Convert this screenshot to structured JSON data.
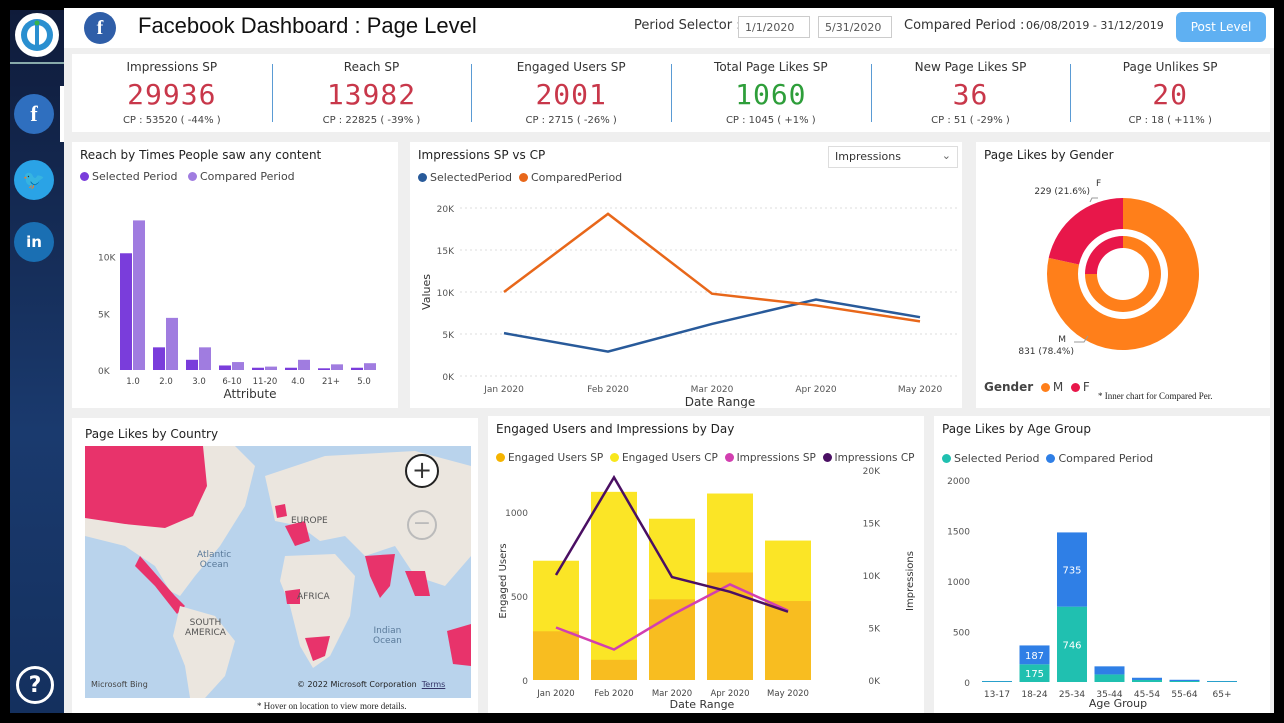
{
  "header": {
    "title": "Facebook Dashboard : Page Level",
    "period_selector_label": "Period Selector :",
    "start_date": "1/1/2020",
    "end_date": "5/31/2020",
    "compared_label": "Compared Period :",
    "compared_range": "06/08/2019 - 31/12/2019",
    "post_level_button": "Post Level"
  },
  "kpis": [
    {
      "label": "Impressions SP",
      "value": "29936",
      "cp": "CP : 53520 ( -44% )",
      "color": "#c8374a"
    },
    {
      "label": "Reach SP",
      "value": "13982",
      "cp": "CP : 22825 ( -39% )",
      "color": "#c8374a"
    },
    {
      "label": "Engaged Users SP",
      "value": "2001",
      "cp": "CP : 2715 ( -26% )",
      "color": "#c8374a"
    },
    {
      "label": "Total Page Likes SP",
      "value": "1060",
      "cp": "CP : 1045 ( +1% )",
      "color": "#2e9e3a"
    },
    {
      "label": "New Page Likes SP",
      "value": "36",
      "cp": "CP : 51 ( -29% )",
      "color": "#c8374a"
    },
    {
      "label": "Page Unlikes SP",
      "value": "20",
      "cp": "CP : 18 ( +11% )",
      "color": "#c8374a"
    }
  ],
  "reach_chart": {
    "title": "Reach by Times People saw any content",
    "legend": [
      "Selected Period",
      "Compared Period"
    ]
  },
  "impressions_chart": {
    "title": "Impressions SP vs CP",
    "dropdown": "Impressions",
    "legend": [
      "SelectedPeriod",
      "ComparedPeriod"
    ]
  },
  "gender_chart": {
    "title": "Page Likes by Gender",
    "legend_title": "Gender",
    "legend": [
      "M",
      "F"
    ],
    "note": "* Inner chart for Compared Per.",
    "label_f": "F",
    "label_m": "M",
    "label_f_val": "229 (21.6%)",
    "label_m_val": "831 (78.4%)"
  },
  "map": {
    "title": "Page Likes by Country",
    "labels": {
      "europe": "EUROPE",
      "atlantic": "Atlantic\nOcean",
      "africa": "AFRICA",
      "south_america": "SOUTH\nAMERICA",
      "indian": "Indian\nOcean"
    },
    "bing": "Microsoft Bing",
    "copyright": "© 2022 Microsoft Corporation",
    "terms": "Terms",
    "note": "* Hover on location to view more details."
  },
  "engaged_chart": {
    "title": "Engaged Users and Impressions by Day",
    "legend": [
      "Engaged Users SP",
      "Engaged Users CP",
      "Impressions SP",
      "Impressions CP"
    ]
  },
  "age_chart": {
    "title": "Page Likes by Age Group",
    "legend": [
      "Selected Period",
      "Compared Period"
    ]
  },
  "chart_data": [
    {
      "type": "bar",
      "title": "Reach by Times People saw any content",
      "categories": [
        "1.0",
        "2.0",
        "3.0",
        "6-10",
        "11-20",
        "4.0",
        "21+",
        "5.0"
      ],
      "series": [
        {
          "name": "Selected Period",
          "values": [
            10300,
            2000,
            900,
            400,
            200,
            200,
            150,
            200
          ]
        },
        {
          "name": "Compared Period",
          "values": [
            13200,
            4600,
            2000,
            700,
            300,
            900,
            500,
            600
          ]
        }
      ],
      "xlabel": "Attribute",
      "ylabel": "",
      "ylim": [
        0,
        15000
      ],
      "yticks": [
        "0K",
        "5K",
        "10K"
      ]
    },
    {
      "type": "line",
      "title": "Impressions SP vs CP",
      "categories": [
        "Jan 2020",
        "Feb 2020",
        "Mar 2020",
        "Apr 2020",
        "May 2020"
      ],
      "series": [
        {
          "name": "SelectedPeriod",
          "values": [
            5100,
            2900,
            6200,
            9100,
            7000
          ]
        },
        {
          "name": "ComparedPeriod",
          "values": [
            10000,
            19300,
            9800,
            8400,
            6500
          ]
        }
      ],
      "xlabel": "Date Range",
      "ylabel": "Values",
      "ylim": [
        0,
        20000
      ],
      "yticks": [
        "0K",
        "5K",
        "10K",
        "15K",
        "20K"
      ]
    },
    {
      "type": "pie",
      "title": "Page Likes by Gender",
      "series": [
        {
          "name": "Selected",
          "values": [
            {
              "label": "M",
              "value": 831
            },
            {
              "label": "F",
              "value": 229
            }
          ]
        },
        {
          "name": "Compared",
          "values": [
            {
              "label": "M",
              "value": 0.75
            },
            {
              "label": "F",
              "value": 0.25
            }
          ]
        }
      ]
    },
    {
      "type": "bar",
      "title": "Engaged Users and Impressions by Day",
      "categories": [
        "Jan 2020",
        "Feb 2020",
        "Mar 2020",
        "Apr 2020",
        "May 2020"
      ],
      "series": [
        {
          "name": "Engaged Users SP",
          "values": [
            290,
            120,
            480,
            640,
            470
          ]
        },
        {
          "name": "Engaged Users CP",
          "values": [
            710,
            1120,
            960,
            1110,
            830
          ]
        },
        {
          "name": "Impressions SP",
          "values": [
            5000,
            2900,
            6200,
            9100,
            6600
          ]
        },
        {
          "name": "Impressions CP",
          "values": [
            10000,
            19300,
            9800,
            8400,
            6500
          ]
        }
      ],
      "xlabel": "Date Range",
      "ylabel": "Engaged Users",
      "y2label": "Impressions",
      "ylim": [
        0,
        1250
      ],
      "y2lim": [
        0,
        20000
      ],
      "yticks": [
        "0",
        "500",
        "1000"
      ],
      "y2ticks": [
        "0K",
        "5K",
        "10K",
        "15K",
        "20K"
      ]
    },
    {
      "type": "bar",
      "title": "Page Likes by Age Group",
      "categories": [
        "13-17",
        "18-24",
        "25-34",
        "35-44",
        "45-54",
        "55-64",
        "65+"
      ],
      "series": [
        {
          "name": "Selected Period",
          "values": [
            5,
            175,
            746,
            75,
            20,
            10,
            5
          ]
        },
        {
          "name": "Compared Period",
          "values": [
            5,
            187,
            735,
            80,
            22,
            12,
            5
          ]
        }
      ],
      "data_labels": {
        "18-24": [
          "175",
          "187"
        ],
        "25-34": [
          "746",
          "735"
        ]
      },
      "xlabel": "Age Group",
      "ylim": [
        0,
        2000
      ],
      "yticks": [
        "0",
        "500",
        "1000",
        "1500",
        "2000"
      ]
    }
  ]
}
